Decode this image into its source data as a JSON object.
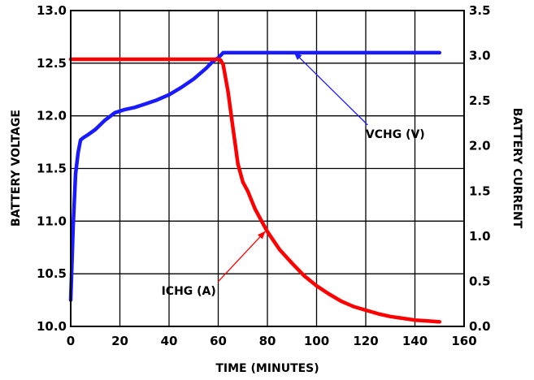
{
  "chart_data": {
    "type": "line",
    "xlabel": "TIME (MINUTES)",
    "ylabel_left": "BATTERY VOLTAGE",
    "ylabel_right": "BATTERY CURRENT",
    "xlim": [
      0,
      160
    ],
    "ylim_left": [
      10.0,
      13.0
    ],
    "ylim_right": [
      0.0,
      3.5
    ],
    "x_ticks": [
      0,
      20,
      40,
      60,
      80,
      100,
      120,
      140,
      160
    ],
    "x_tick_labels": [
      "0",
      "20",
      "40",
      "60",
      "80",
      "100",
      "120",
      "140",
      "160"
    ],
    "y_left_ticks": [
      10.0,
      10.5,
      11.0,
      11.5,
      12.0,
      12.5,
      13.0
    ],
    "y_left_tick_labels": [
      "10.0",
      "10.5",
      "11.0",
      "11.5",
      "12.0",
      "12.5",
      "13.0"
    ],
    "y_right_ticks": [
      0.0,
      0.5,
      1.0,
      1.5,
      2.0,
      2.5,
      3.0,
      3.5
    ],
    "y_right_tick_labels": [
      "0.0",
      "0.5",
      "1.0",
      "1.5",
      "2.0",
      "2.5",
      "3.0",
      "3.5"
    ],
    "grid": true,
    "series": [
      {
        "name": "VCHG (V)",
        "axis": "left",
        "color": "#1a1aff",
        "x": [
          0,
          0.5,
          1,
          1.5,
          2,
          3,
          4,
          5,
          7,
          10,
          14,
          18,
          22,
          26,
          30,
          35,
          40,
          45,
          50,
          55,
          58,
          60,
          62,
          70,
          80,
          90,
          100,
          110,
          120,
          130,
          140,
          150
        ],
        "y": [
          10.25,
          10.6,
          10.95,
          11.2,
          11.45,
          11.65,
          11.77,
          11.79,
          11.82,
          11.87,
          11.96,
          12.03,
          12.06,
          12.08,
          12.11,
          12.15,
          12.2,
          12.27,
          12.35,
          12.45,
          12.52,
          12.55,
          12.6,
          12.6,
          12.6,
          12.6,
          12.6,
          12.6,
          12.6,
          12.6,
          12.6,
          12.6
        ]
      },
      {
        "name": "ICHG (A)",
        "axis": "right",
        "color": "#ff0000",
        "x": [
          0,
          20,
          40,
          60,
          61,
          62,
          63,
          64,
          65,
          66,
          67,
          68,
          70,
          72,
          75,
          78,
          80,
          85,
          90,
          95,
          100,
          105,
          110,
          115,
          120,
          125,
          130,
          135,
          140,
          145,
          150
        ],
        "y": [
          2.96,
          2.96,
          2.96,
          2.96,
          2.95,
          2.9,
          2.75,
          2.6,
          2.4,
          2.2,
          2.0,
          1.8,
          1.6,
          1.5,
          1.3,
          1.15,
          1.05,
          0.85,
          0.7,
          0.56,
          0.45,
          0.36,
          0.28,
          0.22,
          0.18,
          0.14,
          0.11,
          0.09,
          0.07,
          0.06,
          0.05
        ]
      }
    ],
    "annotations": [
      {
        "text": "VCHG (V)",
        "series": "VCHG (V)",
        "arrow_to_x": 91,
        "arrow_to_y_left": 12.6,
        "text_x": 132,
        "text_y_left": 11.79
      },
      {
        "text": "ICHG (A)",
        "series": "ICHG (A)",
        "arrow_to_x": 79,
        "arrow_to_y_right": 1.05,
        "text_x": 48,
        "text_y_left": 10.3
      }
    ]
  }
}
